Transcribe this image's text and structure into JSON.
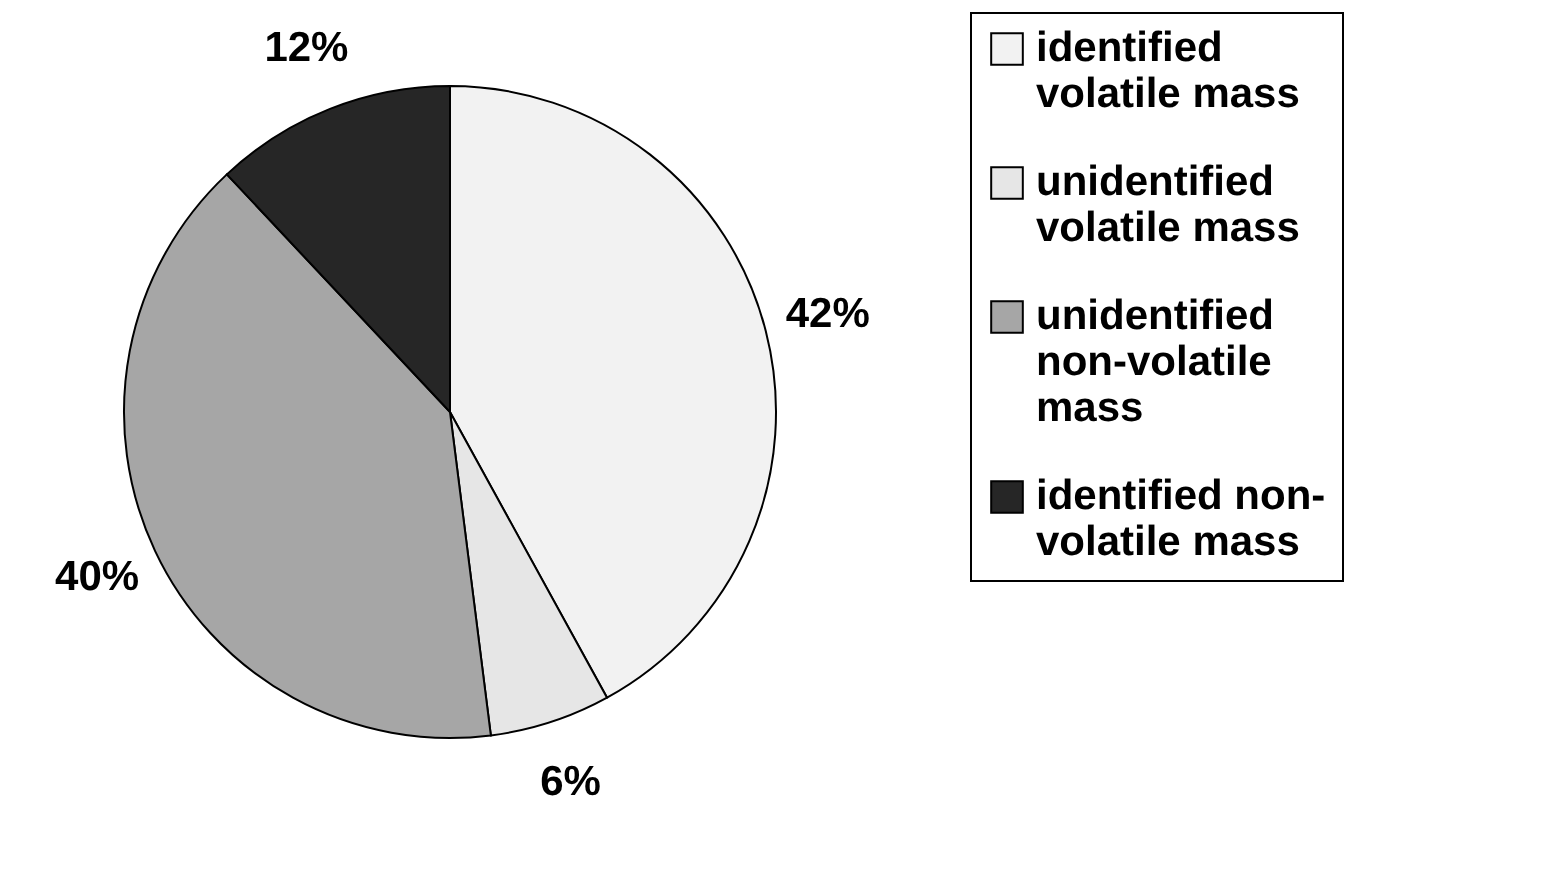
{
  "chart_data": {
    "type": "pie",
    "categories": [
      "identified volatile mass",
      "unidentified volatile mass",
      "unidentified non-volatile mass",
      "identified non-volatile mass"
    ],
    "values": [
      42,
      6,
      40,
      12
    ],
    "colors": [
      "#f2f2f2",
      "#e6e6e6",
      "#a6a6a6",
      "#262626"
    ],
    "value_labels": [
      "42%",
      "6%",
      "40%",
      "12%"
    ],
    "legend": "right"
  }
}
